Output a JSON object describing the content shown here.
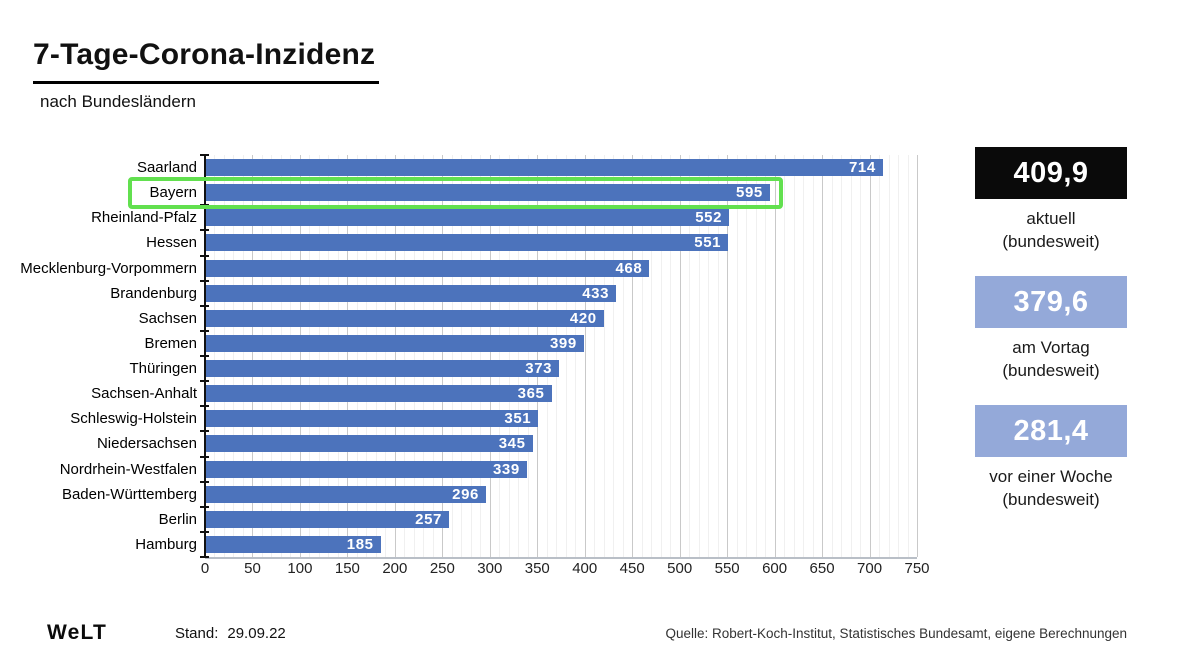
{
  "header": {
    "title": "7-Tage-Corona-Inzidenz",
    "subtitle": "nach Bundesländern"
  },
  "chart_data": {
    "type": "bar",
    "orientation": "horizontal",
    "title": "7-Tage-Corona-Inzidenz",
    "subtitle": "nach Bundesländern",
    "categories": [
      "Saarland",
      "Bayern",
      "Rheinland-Pfalz",
      "Hessen",
      "Mecklenburg-Vorpommern",
      "Brandenburg",
      "Sachsen",
      "Bremen",
      "Thüringen",
      "Sachsen-Anhalt",
      "Schleswig-Holstein",
      "Niedersachsen",
      "Nordrhein-Westfalen",
      "Baden-Württemberg",
      "Berlin",
      "Hamburg"
    ],
    "values": [
      714,
      595,
      552,
      551,
      468,
      433,
      420,
      399,
      373,
      365,
      351,
      345,
      339,
      296,
      257,
      185
    ],
    "xlim": [
      0,
      750
    ],
    "x_ticks": [
      0,
      50,
      100,
      150,
      200,
      250,
      300,
      350,
      400,
      450,
      500,
      550,
      600,
      650,
      700,
      750
    ],
    "minor_grid_step": 10,
    "major_grid_step": 50,
    "grid": true,
    "bar_color": "#4c73bc",
    "value_label_color": "#ffffff",
    "highlight": {
      "category": "Bayern",
      "color": "#62e04f"
    }
  },
  "stats": [
    {
      "value": "409,9",
      "label_line1": "aktuell",
      "label_line2": "(bundesweit)",
      "box_color": "#0a0a0a"
    },
    {
      "value": "379,6",
      "label_line1": "am Vortag",
      "label_line2": "(bundesweit)",
      "box_color": "#94a9d9"
    },
    {
      "value": "281,4",
      "label_line1": "vor einer Woche",
      "label_line2": "(bundesweit)",
      "box_color": "#94a9d9"
    }
  ],
  "footer": {
    "logo": "WeLT",
    "stand_label": "Stand:",
    "stand_value": "29.09.22",
    "source": "Quelle: Robert-Koch-Institut, Statistisches Bundesamt, eigene Berechnungen"
  }
}
